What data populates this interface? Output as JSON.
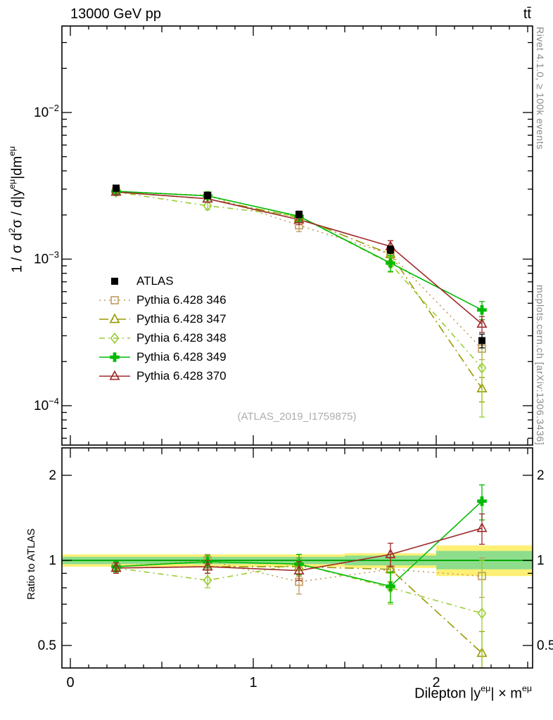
{
  "header": {
    "left": "13000 GeV pp",
    "right": "tt̄"
  },
  "side_notes": {
    "top": "Rivet 4.1.0, ≥ 100k events",
    "bottom": "mcplots.cern.ch [arXiv:1306.3436]"
  },
  "watermark": "(ATLAS_2019_I1759875)",
  "chart_data": {
    "type": "line",
    "title": "",
    "xlabel": "Dilepton |y^{eμ}| × m^{eμ}",
    "ylabel_main": "1 / σ  d^{2}σ / d|y^{eμ}|dm^{eμ}",
    "ylabel_ratio": "Ratio to ATLAS",
    "bin_edges": [
      0,
      0.5,
      1.0,
      1.5,
      2.0,
      2.5
    ],
    "x_centers": [
      0.25,
      0.75,
      1.25,
      1.75,
      2.25
    ],
    "xlim": [
      -0.046,
      2.527
    ],
    "ylim_main": [
      5.4e-05,
      0.039
    ],
    "ylim_ratio": [
      0.417,
      2.5
    ],
    "log_y_main": true,
    "log_y_ratio": true,
    "grid": false,
    "legend_position": "middle-left",
    "x_ticks": [
      {
        "value": 0,
        "label": "0"
      },
      {
        "value": 1,
        "label": "1"
      },
      {
        "value": 2,
        "label": "2"
      }
    ],
    "y_ticks_main": [
      {
        "value": 0.01,
        "label": "10^{-2}"
      },
      {
        "value": 0.001,
        "label": "10^{-3}"
      },
      {
        "value": 0.0001,
        "label": "10^{-4}"
      }
    ],
    "y_ticks_ratio": [
      {
        "value": 2,
        "label": "2"
      },
      {
        "value": 1,
        "label": "1"
      },
      {
        "value": 0.5,
        "label": "0.5"
      }
    ],
    "reference": {
      "name": "ATLAS",
      "marker": "square-filled",
      "color": "#000000",
      "values": [
        0.00305,
        0.00272,
        0.00202,
        0.00116,
        0.000278
      ],
      "errors": [
        0.00015,
        0.00012,
        0.0001,
        7e-05,
        3e-05
      ]
    },
    "series": [
      {
        "name": "Pythia 6.428 346",
        "color": "#c19a5f",
        "marker": "square-open",
        "dash": "2 5",
        "values": [
          0.0029,
          0.00272,
          0.0017,
          0.00108,
          0.000245
        ],
        "ratio": [
          0.95,
          1.0,
          0.84,
          0.93,
          0.88
        ],
        "ratio_err": [
          0.04,
          0.05,
          0.08,
          0.09,
          0.14
        ]
      },
      {
        "name": "Pythia 6.428 347",
        "color": "#999900",
        "marker": "triangle-open",
        "dash": "13 5 2 5",
        "values": [
          0.00287,
          0.00258,
          0.00192,
          0.00108,
          0.000131
        ],
        "ratio": [
          0.94,
          0.95,
          0.95,
          0.93,
          0.47
        ],
        "ratio_err": [
          0.04,
          0.05,
          0.07,
          0.09,
          0.09
        ]
      },
      {
        "name": "Pythia 6.428 348",
        "color": "#9acd32",
        "marker": "diamond-open",
        "dash": "8 5 2 5",
        "values": [
          0.00287,
          0.00231,
          0.00196,
          0.00093,
          0.000181
        ],
        "ratio": [
          0.94,
          0.85,
          0.97,
          0.8,
          0.65
        ],
        "ratio_err": [
          0.04,
          0.05,
          0.08,
          0.1,
          0.35
        ]
      },
      {
        "name": "Pythia 6.428 349",
        "color": "#00bb00",
        "marker": "cross-filled",
        "dash": "",
        "values": [
          0.0029,
          0.0027,
          0.00196,
          0.00094,
          0.00045
        ],
        "ratio": [
          0.95,
          0.99,
          0.97,
          0.81,
          1.62
        ],
        "ratio_err": [
          0.04,
          0.05,
          0.08,
          0.1,
          0.23
        ]
      },
      {
        "name": "Pythia 6.428 370",
        "color": "#9e2b2b",
        "marker": "triangle-open",
        "dash": "",
        "values": [
          0.00287,
          0.00258,
          0.00186,
          0.00122,
          0.000361
        ],
        "ratio": [
          0.94,
          0.95,
          0.92,
          1.05,
          1.3
        ],
        "ratio_err": [
          0.04,
          0.05,
          0.07,
          0.1,
          0.16
        ]
      }
    ],
    "bands": {
      "yellow_color": "#fff075",
      "green_color": "#8ddd8d",
      "unity_line_color": "#00aa00",
      "yellow": [
        [
          0.95,
          1.05
        ],
        [
          0.95,
          1.05
        ],
        [
          0.95,
          1.05
        ],
        [
          0.94,
          1.06
        ],
        [
          0.88,
          1.13
        ]
      ],
      "green": [
        [
          0.97,
          1.03
        ],
        [
          0.97,
          1.03
        ],
        [
          0.97,
          1.03
        ],
        [
          0.96,
          1.04
        ],
        [
          0.93,
          1.08
        ]
      ]
    }
  }
}
